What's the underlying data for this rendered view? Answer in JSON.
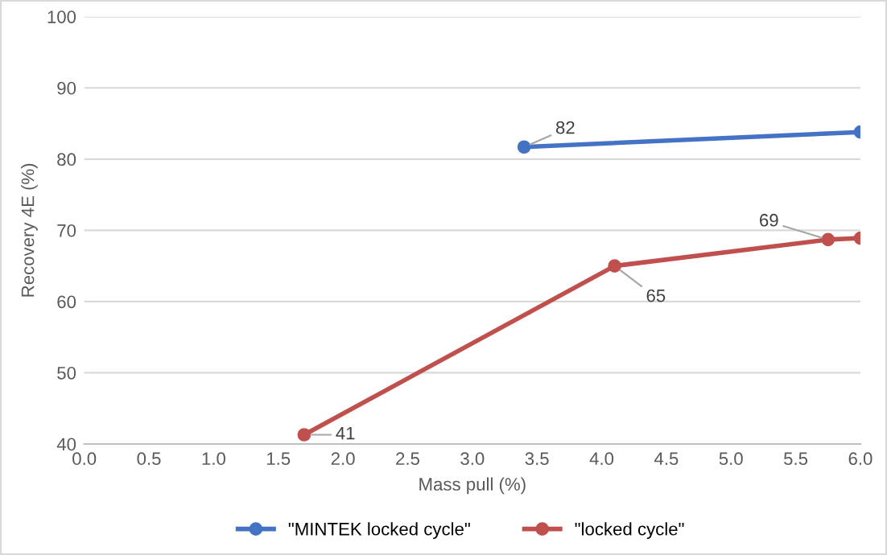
{
  "chart_data": {
    "type": "line",
    "xlabel": "Mass pull (%)",
    "ylabel": "Recovery 4E (%)",
    "xlim": [
      0,
      6
    ],
    "xticks": [
      {
        "value": 0,
        "label": "0.0"
      },
      {
        "value": 0.5,
        "label": "0.5"
      },
      {
        "value": 1,
        "label": "1.0"
      },
      {
        "value": 1.5,
        "label": "1.5"
      },
      {
        "value": 2,
        "label": "2.0"
      },
      {
        "value": 2.5,
        "label": "2.5"
      },
      {
        "value": 3,
        "label": "3.0"
      },
      {
        "value": 3.5,
        "label": "3.5"
      },
      {
        "value": 4,
        "label": "4.0"
      },
      {
        "value": 4.5,
        "label": "4.5"
      },
      {
        "value": 5,
        "label": "5.0"
      },
      {
        "value": 5.5,
        "label": "5.5"
      },
      {
        "value": 6,
        "label": "6.0"
      }
    ],
    "ylim": [
      40,
      100
    ],
    "yticks": [
      40,
      50,
      60,
      70,
      80,
      90,
      100
    ],
    "grid": "y",
    "legend": "bottom",
    "marker": "circle",
    "line_style": "solid",
    "series": [
      {
        "name": "\"MINTEK locked cycle\"",
        "color": "#4472c4",
        "x": [
          3.4,
          6.0
        ],
        "values": [
          81.7,
          83.8
        ],
        "value_labels": [
          "82",
          null
        ]
      },
      {
        "name": "\"locked cycle\"",
        "color": "#c0504d",
        "x": [
          1.7,
          4.1,
          5.75,
          6.0
        ],
        "values": [
          41.3,
          65.0,
          68.7,
          68.9
        ],
        "value_labels": [
          "41",
          "65",
          "69",
          null
        ]
      }
    ]
  }
}
